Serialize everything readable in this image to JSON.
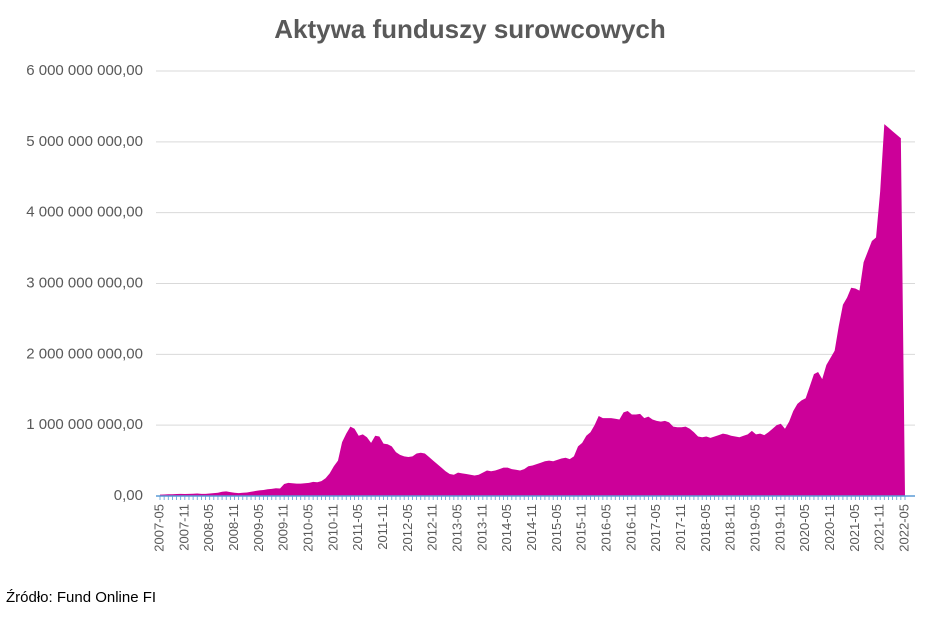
{
  "chart_data": {
    "type": "area",
    "title": "Aktywa funduszy surowcowych",
    "source": "Źródło: Fund Online FI",
    "color": "#cc0099",
    "grid": true,
    "ylim": [
      0,
      6000000000
    ],
    "yticks": [
      {
        "value": 0,
        "label": "0,00"
      },
      {
        "value": 1000000000,
        "label": "1 000 000 000,00"
      },
      {
        "value": 2000000000,
        "label": "2 000 000 000,00"
      },
      {
        "value": 3000000000,
        "label": "3 000 000 000,00"
      },
      {
        "value": 4000000000,
        "label": "4 000 000 000,00"
      },
      {
        "value": 5000000000,
        "label": "5 000 000 000,00"
      },
      {
        "value": 6000000000,
        "label": "6 000 000 000,00"
      }
    ],
    "categories": [
      "2007-05",
      null,
      null,
      null,
      null,
      null,
      "2007-11",
      null,
      null,
      null,
      null,
      null,
      "2008-05",
      null,
      null,
      null,
      null,
      null,
      "2008-11",
      null,
      null,
      null,
      null,
      null,
      "2009-05",
      null,
      null,
      null,
      null,
      null,
      "2009-11",
      null,
      null,
      null,
      null,
      null,
      "2010-05",
      null,
      null,
      null,
      null,
      null,
      "2010-11",
      null,
      null,
      null,
      null,
      null,
      "2011-05",
      null,
      null,
      null,
      null,
      null,
      "2011-11",
      null,
      null,
      null,
      null,
      null,
      "2012-05",
      null,
      null,
      null,
      null,
      null,
      "2012-11",
      null,
      null,
      null,
      null,
      null,
      "2013-05",
      null,
      null,
      null,
      null,
      null,
      "2013-11",
      null,
      null,
      null,
      null,
      null,
      "2014-05",
      null,
      null,
      null,
      null,
      null,
      "2014-11",
      null,
      null,
      null,
      null,
      null,
      "2015-05",
      null,
      null,
      null,
      null,
      null,
      "2015-11",
      null,
      null,
      null,
      null,
      null,
      "2016-05",
      null,
      null,
      null,
      null,
      null,
      "2016-11",
      null,
      null,
      null,
      null,
      null,
      "2017-05",
      null,
      null,
      null,
      null,
      null,
      "2017-11",
      null,
      null,
      null,
      null,
      null,
      "2018-05",
      null,
      null,
      null,
      null,
      null,
      "2018-11",
      null,
      null,
      null,
      null,
      null,
      "2019-05",
      null,
      null,
      null,
      null,
      null,
      "2019-11",
      null,
      null,
      null,
      null,
      null,
      "2020-05",
      null,
      null,
      null,
      null,
      null,
      "2020-11",
      null,
      null,
      null,
      null,
      null,
      "2021-05",
      null,
      null,
      null,
      null,
      null,
      "2021-11",
      null,
      null,
      null,
      null,
      null,
      "2022-05"
    ],
    "values": [
      20000000,
      22000000,
      25000000,
      25000000,
      28000000,
      30000000,
      28000000,
      30000000,
      32000000,
      35000000,
      30000000,
      30000000,
      35000000,
      40000000,
      45000000,
      60000000,
      65000000,
      55000000,
      45000000,
      40000000,
      45000000,
      50000000,
      60000000,
      70000000,
      80000000,
      85000000,
      95000000,
      100000000,
      110000000,
      105000000,
      170000000,
      185000000,
      180000000,
      175000000,
      175000000,
      180000000,
      185000000,
      200000000,
      195000000,
      210000000,
      250000000,
      320000000,
      420000000,
      500000000,
      760000000,
      880000000,
      980000000,
      950000000,
      850000000,
      870000000,
      830000000,
      750000000,
      850000000,
      840000000,
      740000000,
      730000000,
      700000000,
      620000000,
      580000000,
      560000000,
      550000000,
      560000000,
      600000000,
      610000000,
      600000000,
      550000000,
      500000000,
      450000000,
      400000000,
      350000000,
      310000000,
      300000000,
      330000000,
      320000000,
      310000000,
      300000000,
      290000000,
      300000000,
      330000000,
      360000000,
      350000000,
      360000000,
      380000000,
      400000000,
      400000000,
      380000000,
      370000000,
      360000000,
      380000000,
      420000000,
      430000000,
      450000000,
      470000000,
      490000000,
      500000000,
      490000000,
      510000000,
      530000000,
      540000000,
      520000000,
      560000000,
      700000000,
      750000000,
      850000000,
      900000000,
      1000000000,
      1130000000,
      1100000000,
      1100000000,
      1100000000,
      1090000000,
      1080000000,
      1180000000,
      1200000000,
      1150000000,
      1150000000,
      1160000000,
      1100000000,
      1120000000,
      1080000000,
      1060000000,
      1050000000,
      1060000000,
      1040000000,
      980000000,
      970000000,
      970000000,
      980000000,
      950000000,
      900000000,
      840000000,
      830000000,
      840000000,
      820000000,
      840000000,
      860000000,
      880000000,
      870000000,
      850000000,
      840000000,
      830000000,
      850000000,
      870000000,
      920000000,
      870000000,
      880000000,
      860000000,
      900000000,
      950000000,
      1000000000,
      1020000000,
      950000000,
      1050000000,
      1200000000,
      1300000000,
      1350000000,
      1380000000,
      1550000000,
      1720000000,
      1750000000,
      1650000000,
      1850000000,
      1950000000,
      2050000000,
      2400000000,
      2700000000,
      2800000000,
      2940000000,
      2930000000,
      2900000000,
      3300000000,
      3450000000,
      3600000000,
      3650000000,
      4300000000,
      5250000000,
      5200000000,
      5150000000,
      5100000000,
      5050000000,
      0
    ]
  }
}
